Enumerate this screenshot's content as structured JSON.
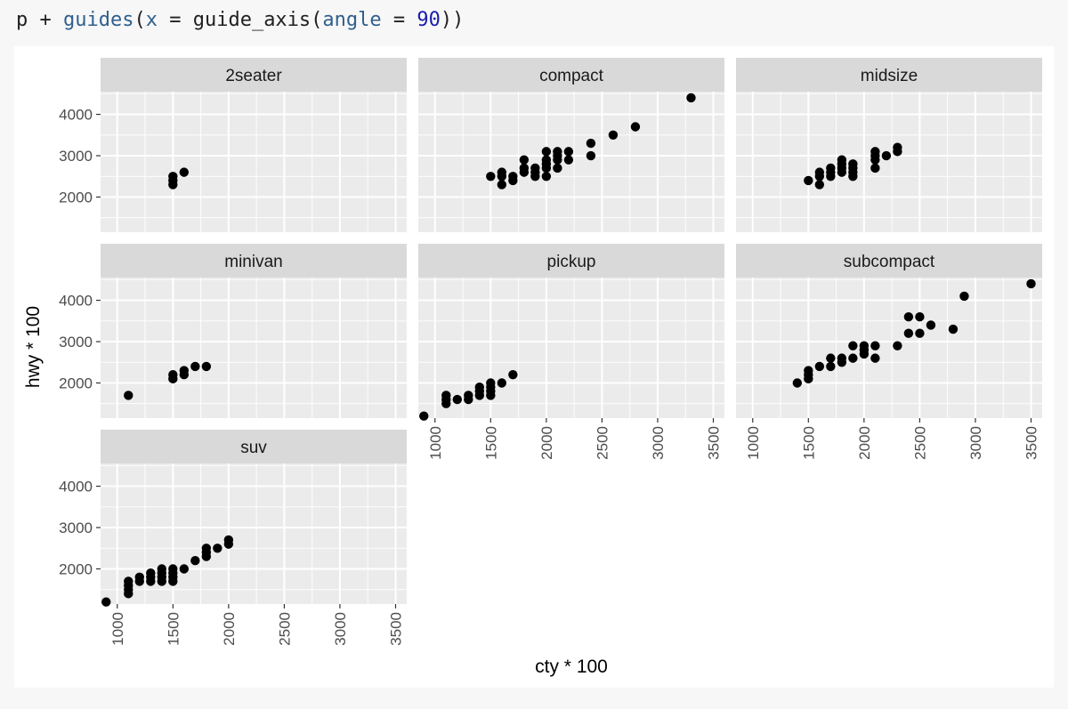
{
  "code": {
    "tokens": [
      {
        "text": "p + ",
        "kind": "plain"
      },
      {
        "text": "guides",
        "kind": "fn"
      },
      {
        "text": "(",
        "kind": "plain"
      },
      {
        "text": "x",
        "kind": "fn"
      },
      {
        "text": " = ",
        "kind": "plain"
      },
      {
        "text": "guide_axis",
        "kind": "plain"
      },
      {
        "text": "(",
        "kind": "plain"
      },
      {
        "text": "angle",
        "kind": "fn"
      },
      {
        "text": " = ",
        "kind": "plain"
      },
      {
        "text": "90",
        "kind": "num"
      },
      {
        "text": "))",
        "kind": "plain"
      }
    ]
  },
  "chart_data": {
    "type": "scatter",
    "facet_layout": {
      "ncol": 3,
      "nrow": 3,
      "scales": "fixed",
      "x_axis_angle": 90
    },
    "xlabel": "cty * 100",
    "ylabel": "hwy * 100",
    "xlim": [
      850,
      3600
    ],
    "ylim": [
      1150,
      4550
    ],
    "x_breaks": [
      1000,
      1500,
      2000,
      2500,
      3000,
      3500
    ],
    "y_breaks": [
      2000,
      3000,
      4000
    ],
    "x_tick_labels": [
      "1000",
      "1500",
      "2000",
      "2500",
      "3000",
      "3500"
    ],
    "y_tick_labels": [
      "2000",
      "3000",
      "4000"
    ],
    "grid": true,
    "colors": {
      "panel_bg": "#ebebeb",
      "strip_bg": "#d9d9d9",
      "grid_major": "#ffffff",
      "point": "#000000",
      "text_strip": "#1a1a1a",
      "text_tick": "#4d4d4d",
      "text_title": "#000000"
    },
    "panels": [
      {
        "label": "2seater",
        "points": [
          [
            1500,
            2300
          ],
          [
            1500,
            2400
          ],
          [
            1500,
            2500
          ],
          [
            1600,
            2600
          ]
        ]
      },
      {
        "label": "compact",
        "points": [
          [
            1500,
            2500
          ],
          [
            1600,
            2300
          ],
          [
            1600,
            2500
          ],
          [
            1600,
            2600
          ],
          [
            1700,
            2400
          ],
          [
            1700,
            2500
          ],
          [
            1800,
            2600
          ],
          [
            1800,
            2700
          ],
          [
            1800,
            2900
          ],
          [
            1900,
            2500
          ],
          [
            1900,
            2600
          ],
          [
            1900,
            2700
          ],
          [
            2000,
            2500
          ],
          [
            2000,
            2700
          ],
          [
            2000,
            2800
          ],
          [
            2000,
            2900
          ],
          [
            2000,
            3100
          ],
          [
            2100,
            2700
          ],
          [
            2100,
            2900
          ],
          [
            2100,
            3000
          ],
          [
            2100,
            3100
          ],
          [
            2200,
            2900
          ],
          [
            2200,
            3100
          ],
          [
            2400,
            3000
          ],
          [
            2400,
            3300
          ],
          [
            2600,
            3500
          ],
          [
            2800,
            3700
          ],
          [
            3300,
            4400
          ]
        ]
      },
      {
        "label": "midsize",
        "points": [
          [
            1500,
            2400
          ],
          [
            1600,
            2300
          ],
          [
            1600,
            2500
          ],
          [
            1600,
            2600
          ],
          [
            1700,
            2500
          ],
          [
            1700,
            2600
          ],
          [
            1700,
            2700
          ],
          [
            1800,
            2600
          ],
          [
            1800,
            2700
          ],
          [
            1800,
            2800
          ],
          [
            1800,
            2900
          ],
          [
            1900,
            2500
          ],
          [
            1900,
            2600
          ],
          [
            1900,
            2700
          ],
          [
            1900,
            2800
          ],
          [
            2100,
            2700
          ],
          [
            2100,
            2900
          ],
          [
            2100,
            3000
          ],
          [
            2100,
            3100
          ],
          [
            2200,
            3000
          ],
          [
            2300,
            3100
          ],
          [
            2300,
            3200
          ]
        ]
      },
      {
        "label": "minivan",
        "points": [
          [
            1100,
            1700
          ],
          [
            1500,
            2100
          ],
          [
            1500,
            2200
          ],
          [
            1600,
            2200
          ],
          [
            1600,
            2300
          ],
          [
            1700,
            2400
          ],
          [
            1800,
            2400
          ]
        ]
      },
      {
        "label": "pickup",
        "points": [
          [
            900,
            1200
          ],
          [
            1100,
            1500
          ],
          [
            1100,
            1600
          ],
          [
            1100,
            1700
          ],
          [
            1200,
            1600
          ],
          [
            1300,
            1600
          ],
          [
            1300,
            1700
          ],
          [
            1400,
            1700
          ],
          [
            1400,
            1800
          ],
          [
            1400,
            1900
          ],
          [
            1500,
            1700
          ],
          [
            1500,
            1800
          ],
          [
            1500,
            1900
          ],
          [
            1500,
            2000
          ],
          [
            1600,
            2000
          ],
          [
            1700,
            2200
          ]
        ]
      },
      {
        "label": "subcompact",
        "points": [
          [
            1400,
            2000
          ],
          [
            1500,
            2100
          ],
          [
            1500,
            2200
          ],
          [
            1500,
            2300
          ],
          [
            1600,
            2400
          ],
          [
            1700,
            2400
          ],
          [
            1700,
            2600
          ],
          [
            1800,
            2500
          ],
          [
            1800,
            2600
          ],
          [
            1900,
            2600
          ],
          [
            1900,
            2900
          ],
          [
            2000,
            2700
          ],
          [
            2000,
            2800
          ],
          [
            2000,
            2900
          ],
          [
            2100,
            2600
          ],
          [
            2100,
            2900
          ],
          [
            2300,
            2900
          ],
          [
            2400,
            3200
          ],
          [
            2400,
            3600
          ],
          [
            2500,
            3200
          ],
          [
            2500,
            3600
          ],
          [
            2600,
            3400
          ],
          [
            2800,
            3300
          ],
          [
            2900,
            4100
          ],
          [
            3500,
            4400
          ]
        ]
      },
      {
        "label": "suv",
        "points": [
          [
            900,
            1200
          ],
          [
            1100,
            1400
          ],
          [
            1100,
            1500
          ],
          [
            1100,
            1600
          ],
          [
            1100,
            1700
          ],
          [
            1200,
            1700
          ],
          [
            1200,
            1800
          ],
          [
            1300,
            1700
          ],
          [
            1300,
            1800
          ],
          [
            1300,
            1900
          ],
          [
            1400,
            1700
          ],
          [
            1400,
            1800
          ],
          [
            1400,
            1900
          ],
          [
            1400,
            2000
          ],
          [
            1500,
            1700
          ],
          [
            1500,
            1800
          ],
          [
            1500,
            1900
          ],
          [
            1500,
            2000
          ],
          [
            1600,
            2000
          ],
          [
            1700,
            2200
          ],
          [
            1800,
            2300
          ],
          [
            1800,
            2400
          ],
          [
            1800,
            2500
          ],
          [
            1900,
            2500
          ],
          [
            2000,
            2600
          ],
          [
            2000,
            2700
          ]
        ]
      }
    ]
  }
}
